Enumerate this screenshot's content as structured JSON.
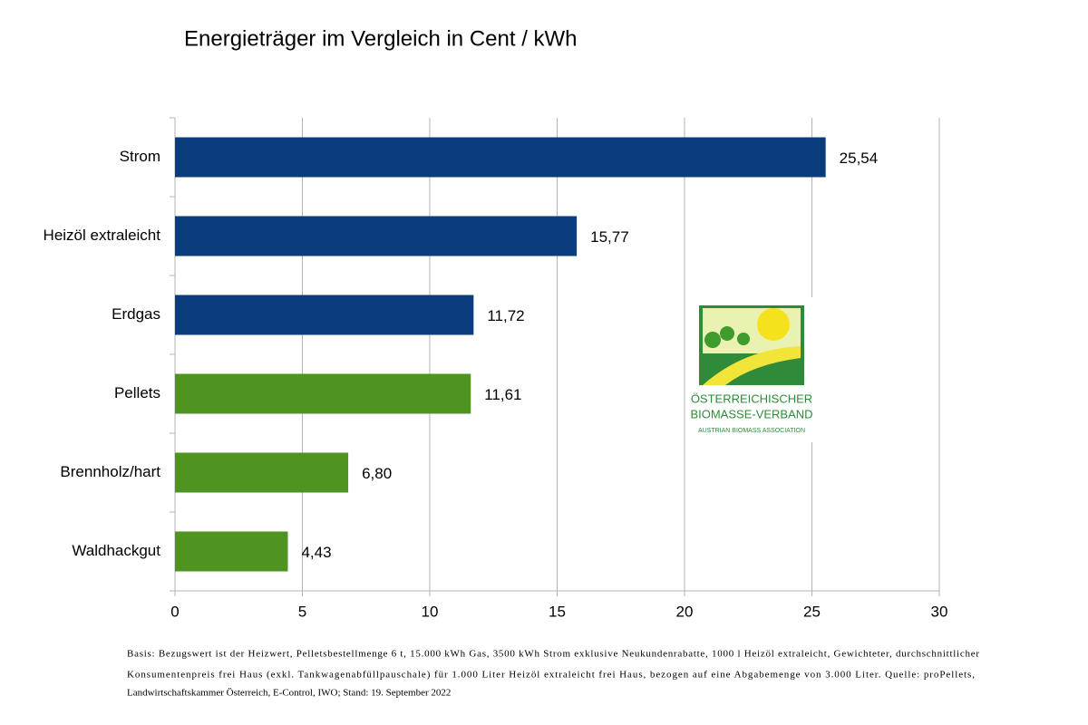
{
  "chart_data": {
    "type": "bar",
    "orientation": "horizontal",
    "title": "Energieträger im Vergleich in Cent / kWh",
    "categories": [
      "Strom",
      "Heizöl extraleicht",
      "Erdgas",
      "Pellets",
      "Brennholz/hart",
      "Waldhackgut"
    ],
    "values": [
      25.54,
      15.77,
      11.72,
      11.61,
      6.8,
      4.43
    ],
    "value_labels": [
      "25,54",
      "15,77",
      "11,72",
      "11,61",
      "6,80",
      "4,43"
    ],
    "colors": [
      "#0b3d7e",
      "#0b3d7e",
      "#0b3d7e",
      "#4f9321",
      "#4f9321",
      "#4f9321"
    ],
    "xlim": [
      0,
      30
    ],
    "xticks": [
      0,
      5,
      10,
      15,
      20,
      25,
      30
    ],
    "grid": true,
    "note": [
      "Basis: Bezugswert ist der Heizwert, Pelletsbestellmenge 6 t, 15.000 kWh Gas, 3500 kWh Strom exklusive Neukundenrabatte, 1000 l Heizöl extraleicht, Gewichteter, durchschnittlicher",
      "Konsumentenpreis frei Haus (exkl. Tankwagenabfüllpauschale) für 1.000 Liter Heizöl extraleicht frei Haus, bezogen auf eine Abgabemenge von 3.000 Liter. Quelle: proPellets,",
      "Landwirtschaftskammer Österreich, E-Control, IWO; Stand: 19. September 2022"
    ]
  },
  "logo": {
    "line1": "ÖSTERREICHISCHER",
    "line2": "BIOMASSE-VERBAND",
    "line3": "AUSTRIAN BIOMASS ASSOCIATION"
  }
}
